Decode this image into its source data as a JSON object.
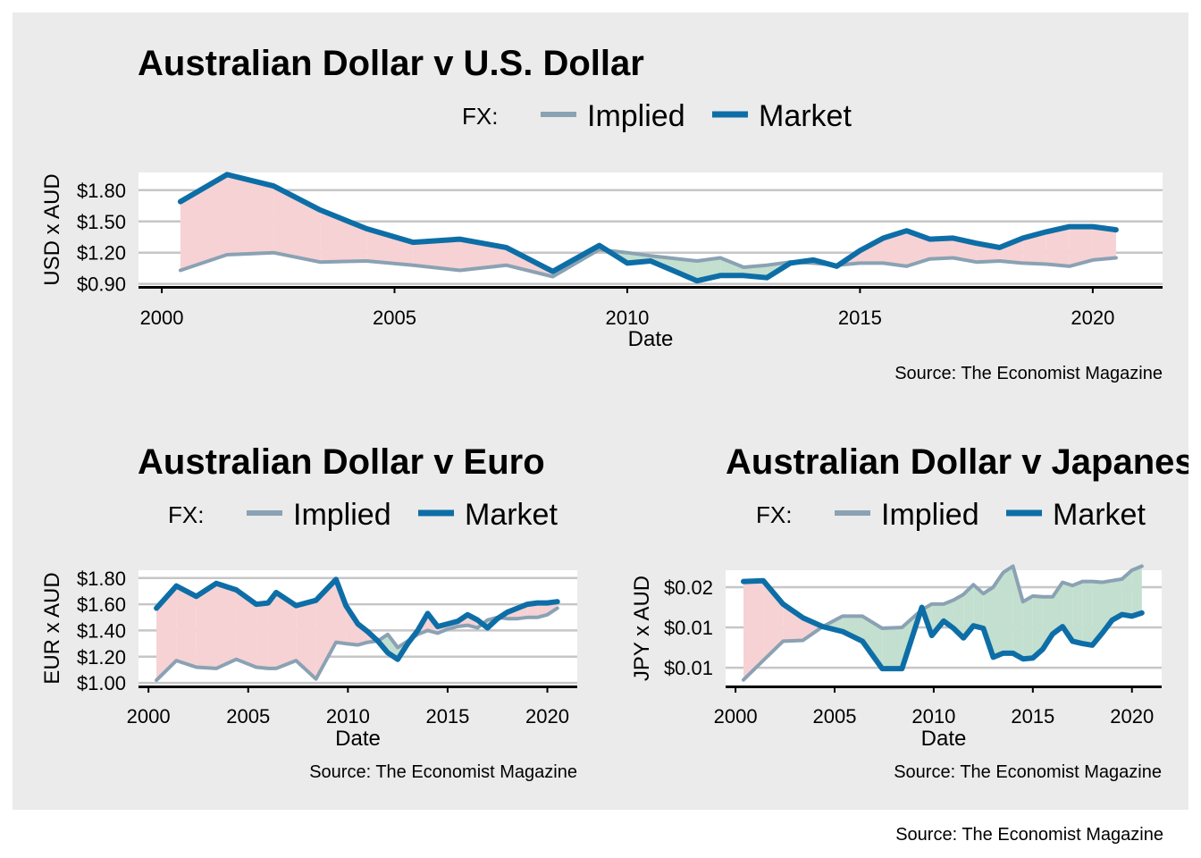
{
  "colors": {
    "panel_bg": "#ebebeb",
    "plot_bg": "#ffffff",
    "implied": "#8aa2b3",
    "market": "#0d6ea7",
    "overvalued_fill": "#f6d2d4",
    "undervalued_fill": "#c3dfcf",
    "grid": "#c6c6c6"
  },
  "footer_source": "Source: The Economist Magazine",
  "chart_data": [
    {
      "type": "line",
      "title": "Australian Dollar v U.S. Dollar",
      "legend_title": "FX:",
      "legend_position": "top",
      "xlabel": "Date",
      "ylabel": "USD x AUD",
      "source": "Source: The Economist Magazine",
      "xlim": [
        1999.5,
        2021.5
      ],
      "ylim": [
        0.88,
        1.97
      ],
      "xticks": [
        2000,
        2005,
        2010,
        2015,
        2020
      ],
      "xtick_labels": [
        "2000",
        "2005",
        "2010",
        "2015",
        "2020"
      ],
      "yticks": [
        0.9,
        1.2,
        1.5,
        1.8
      ],
      "ytick_labels": [
        "$0.90",
        "$1.20",
        "$1.50",
        "$1.80"
      ],
      "x": [
        2000.4,
        2001.4,
        2002.4,
        2003.4,
        2004.4,
        2005.4,
        2006.4,
        2007.4,
        2008.4,
        2009.4,
        2010.0,
        2010.5,
        2011.5,
        2012.0,
        2012.5,
        2013.0,
        2013.5,
        2014.0,
        2014.5,
        2015.0,
        2015.5,
        2016.0,
        2016.5,
        2017.0,
        2017.5,
        2018.0,
        2018.5,
        2019.0,
        2019.5,
        2020.0,
        2020.5
      ],
      "series": [
        {
          "name": "Implied",
          "values": [
            1.03,
            1.18,
            1.2,
            1.11,
            1.12,
            1.08,
            1.03,
            1.08,
            0.97,
            1.23,
            1.2,
            1.17,
            1.12,
            1.15,
            1.06,
            1.08,
            1.11,
            1.1,
            1.08,
            1.1,
            1.1,
            1.07,
            1.14,
            1.15,
            1.11,
            1.12,
            1.1,
            1.09,
            1.07,
            1.13,
            1.15
          ]
        },
        {
          "name": "Market",
          "values": [
            1.69,
            1.95,
            1.84,
            1.61,
            1.43,
            1.3,
            1.33,
            1.25,
            1.02,
            1.27,
            1.1,
            1.12,
            0.93,
            0.98,
            0.98,
            0.96,
            1.1,
            1.13,
            1.07,
            1.22,
            1.34,
            1.41,
            1.33,
            1.34,
            1.29,
            1.25,
            1.34,
            1.4,
            1.45,
            1.45,
            1.42
          ]
        }
      ]
    },
    {
      "type": "line",
      "title": "Australian Dollar v Euro",
      "legend_title": "FX:",
      "legend_position": "top",
      "xlabel": "Date",
      "ylabel": "EUR x AUD",
      "source": "Source: The Economist Magazine",
      "xlim": [
        1999.5,
        2021.5
      ],
      "ylim": [
        0.98,
        1.86
      ],
      "xticks": [
        2000,
        2005,
        2010,
        2015,
        2020
      ],
      "xtick_labels": [
        "2000",
        "2005",
        "2010",
        "2015",
        "2020"
      ],
      "yticks": [
        1.0,
        1.2,
        1.4,
        1.6,
        1.8
      ],
      "ytick_labels": [
        "$1.00",
        "$1.20",
        "$1.40",
        "$1.60",
        "$1.80"
      ],
      "x": [
        2000.4,
        2001.4,
        2002.4,
        2003.4,
        2004.4,
        2005.4,
        2006.0,
        2006.4,
        2007.4,
        2008.4,
        2009.4,
        2009.9,
        2010.5,
        2011.0,
        2011.5,
        2012.0,
        2012.5,
        2013.0,
        2013.5,
        2014.0,
        2014.5,
        2015.0,
        2015.5,
        2016.0,
        2016.5,
        2017.0,
        2017.5,
        2018.0,
        2018.5,
        2019.0,
        2019.5,
        2020.0,
        2020.5
      ],
      "series": [
        {
          "name": "Implied",
          "values": [
            1.02,
            1.17,
            1.12,
            1.11,
            1.18,
            1.12,
            1.11,
            1.11,
            1.17,
            1.03,
            1.31,
            1.3,
            1.29,
            1.31,
            1.32,
            1.37,
            1.27,
            1.32,
            1.37,
            1.4,
            1.38,
            1.41,
            1.43,
            1.44,
            1.42,
            1.48,
            1.5,
            1.49,
            1.49,
            1.5,
            1.5,
            1.52,
            1.57
          ]
        },
        {
          "name": "Market",
          "values": [
            1.57,
            1.74,
            1.66,
            1.76,
            1.71,
            1.6,
            1.61,
            1.69,
            1.59,
            1.63,
            1.79,
            1.59,
            1.45,
            1.39,
            1.32,
            1.23,
            1.18,
            1.3,
            1.4,
            1.53,
            1.43,
            1.45,
            1.47,
            1.52,
            1.48,
            1.42,
            1.49,
            1.54,
            1.57,
            1.6,
            1.61,
            1.61,
            1.62
          ]
        }
      ]
    },
    {
      "type": "line",
      "title": "Australian Dollar v Japanese Yen",
      "legend_title": "FX:",
      "legend_position": "top",
      "xlabel": "Date",
      "ylabel": "JPY x AUD",
      "source": "Source: The Economist Magazine",
      "xlim": [
        1999.5,
        2021.5
      ],
      "ylim": [
        0.0028,
        0.0171
      ],
      "xticks": [
        2000,
        2005,
        2010,
        2015,
        2020
      ],
      "xtick_labels": [
        "2000",
        "2005",
        "2010",
        "2015",
        "2020"
      ],
      "yticks": [
        0.005,
        0.01,
        0.015
      ],
      "ytick_labels": [
        "$0.01",
        "$0.01",
        "$0.02"
      ],
      "x": [
        2000.4,
        2001.4,
        2002.4,
        2003.4,
        2004.4,
        2005.4,
        2006.4,
        2007.4,
        2008.4,
        2009.4,
        2009.9,
        2010.5,
        2011.0,
        2011.5,
        2012.0,
        2012.5,
        2013.0,
        2013.5,
        2014.0,
        2014.5,
        2015.0,
        2015.5,
        2016.0,
        2016.5,
        2017.0,
        2017.5,
        2018.0,
        2018.5,
        2019.0,
        2019.5,
        2020.0,
        2020.5
      ],
      "series": [
        {
          "name": "Implied",
          "values": [
            0.0035,
            0.0059,
            0.0083,
            0.0084,
            0.0101,
            0.0114,
            0.0114,
            0.0099,
            0.01,
            0.0122,
            0.0129,
            0.0129,
            0.0134,
            0.0141,
            0.0153,
            0.0142,
            0.015,
            0.0168,
            0.0176,
            0.0132,
            0.0139,
            0.0138,
            0.0138,
            0.0156,
            0.0152,
            0.0157,
            0.0157,
            0.0156,
            0.0158,
            0.016,
            0.0171,
            0.0176
          ]
        },
        {
          "name": "Market",
          "values": [
            0.0157,
            0.0158,
            0.0129,
            0.0112,
            0.0101,
            0.0095,
            0.0083,
            0.0049,
            0.0049,
            0.0125,
            0.009,
            0.0108,
            0.0099,
            0.0087,
            0.0102,
            0.0099,
            0.0063,
            0.0068,
            0.0068,
            0.0061,
            0.0062,
            0.0073,
            0.0092,
            0.0101,
            0.0083,
            0.008,
            0.0078,
            0.0093,
            0.0109,
            0.0116,
            0.0114,
            0.0118
          ]
        }
      ]
    }
  ]
}
